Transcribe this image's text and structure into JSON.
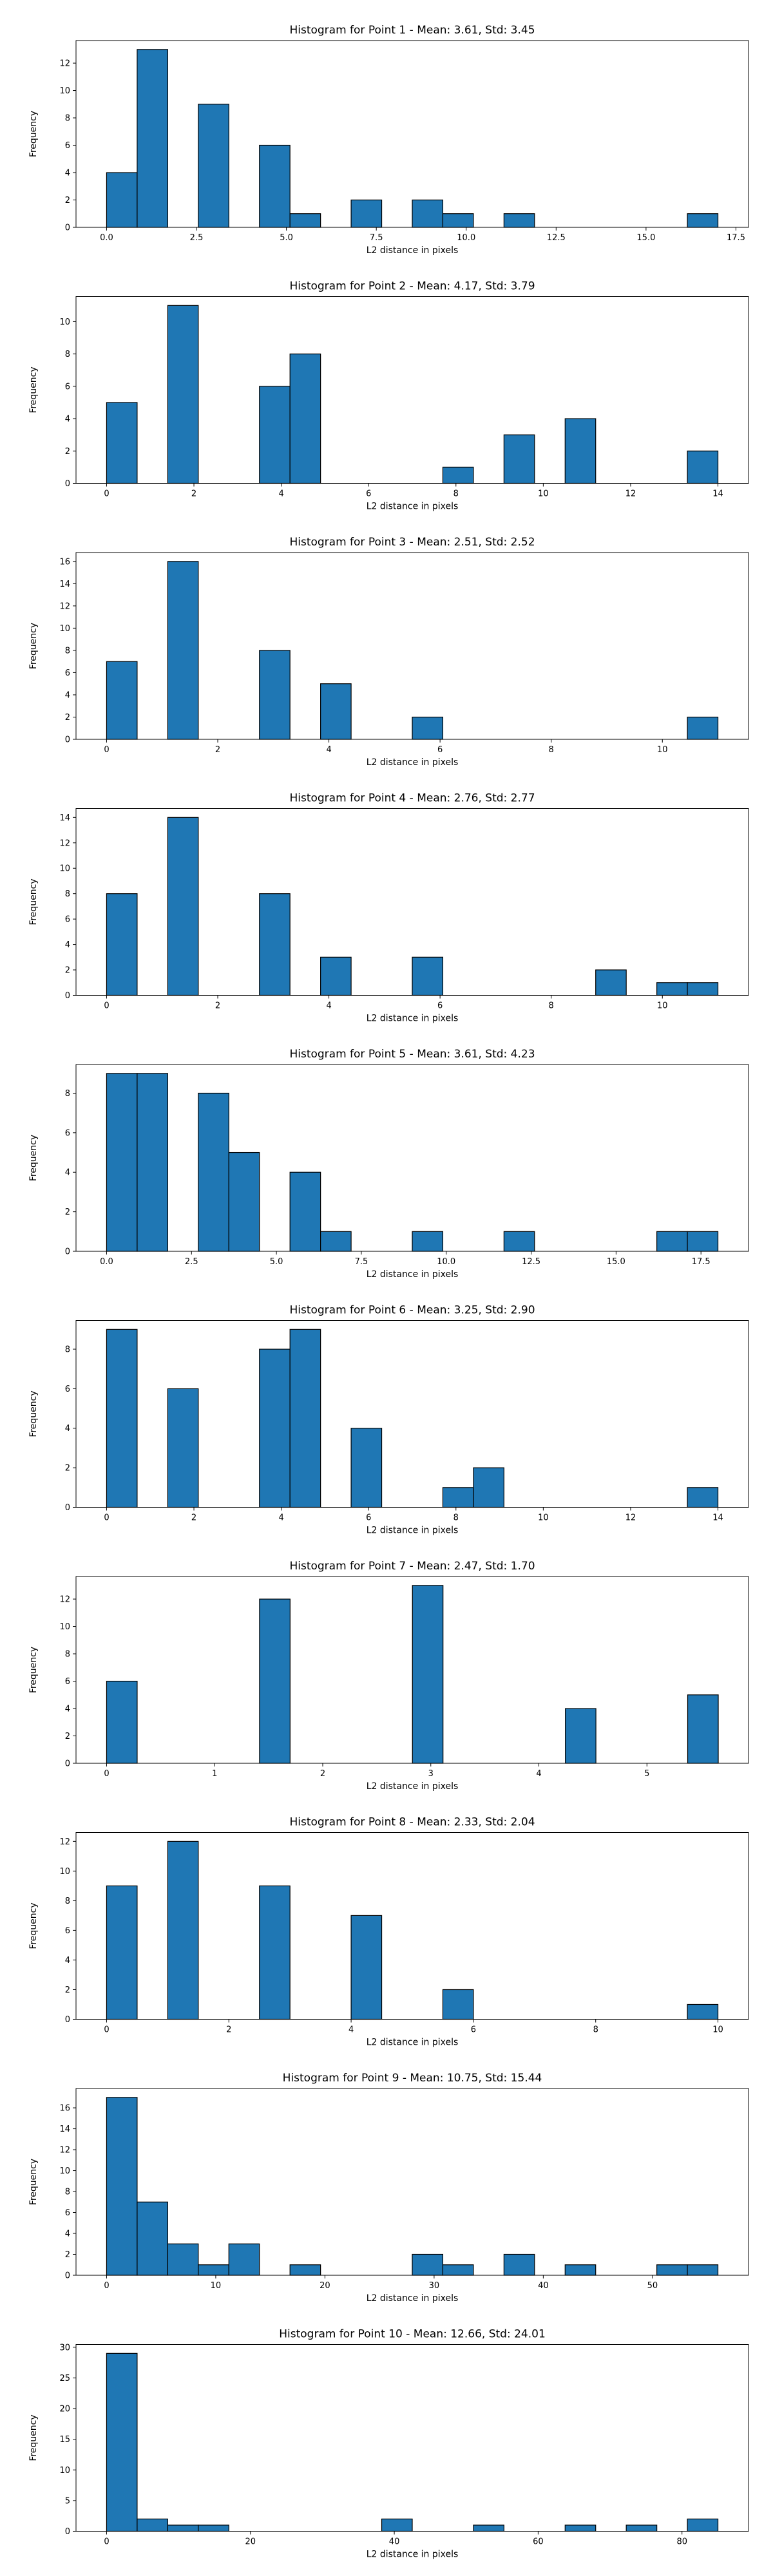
{
  "chart_data": [
    {
      "type": "bar",
      "title": "Histogram for Point 1 - Mean: 3.61, Std: 3.45",
      "xlabel": "L2 distance in pixels",
      "ylabel": "Frequency",
      "xlim": [
        -0.85,
        17.85
      ],
      "ylim": [
        0,
        13.65
      ],
      "xticks": [
        0.0,
        2.5,
        5.0,
        7.5,
        10.0,
        12.5,
        15.0,
        17.5
      ],
      "xtick_labels": [
        "0.0",
        "2.5",
        "5.0",
        "7.5",
        "10.0",
        "12.5",
        "15.0",
        "17.5"
      ],
      "yticks": [
        0,
        2,
        4,
        6,
        8,
        10,
        12
      ],
      "bin_edges": [
        0.0,
        0.85,
        1.7,
        2.55,
        3.4,
        4.25,
        5.1,
        5.95,
        6.8,
        7.65,
        8.5,
        9.35,
        10.2,
        11.05,
        11.9,
        12.75,
        13.6,
        14.45,
        15.3,
        16.15,
        17.0
      ],
      "counts": [
        4,
        13,
        0,
        9,
        0,
        6,
        1,
        0,
        2,
        0,
        2,
        1,
        0,
        1,
        0,
        0,
        0,
        0,
        0,
        1
      ],
      "grid": false,
      "legend": "none"
    },
    {
      "type": "bar",
      "title": "Histogram for Point 2 - Mean: 4.17, Std: 3.79",
      "xlabel": "L2 distance in pixels",
      "ylabel": "Frequency",
      "xlim": [
        -0.7,
        14.7
      ],
      "ylim": [
        0,
        11.55
      ],
      "xticks": [
        0,
        2,
        4,
        6,
        8,
        10,
        12,
        14
      ],
      "xtick_labels": [
        "0",
        "2",
        "4",
        "6",
        "8",
        "10",
        "12",
        "14"
      ],
      "yticks": [
        0,
        2,
        4,
        6,
        8,
        10
      ],
      "bin_edges": [
        0.0,
        0.7,
        1.4,
        2.1,
        2.8,
        3.5,
        4.2,
        4.9,
        5.6,
        6.3,
        7.0,
        7.7,
        8.4,
        9.1,
        9.8,
        10.5,
        11.2,
        11.9,
        12.6,
        13.3,
        14.0
      ],
      "counts": [
        5,
        0,
        11,
        0,
        0,
        6,
        8,
        0,
        0,
        0,
        0,
        1,
        0,
        3,
        0,
        4,
        0,
        0,
        0,
        2
      ],
      "grid": false,
      "legend": "none"
    },
    {
      "type": "bar",
      "title": "Histogram for Point 3 - Mean: 2.51, Std: 2.52",
      "xlabel": "L2 distance in pixels",
      "ylabel": "Frequency",
      "xlim": [
        -0.55,
        11.55
      ],
      "ylim": [
        0,
        16.8
      ],
      "xticks": [
        0,
        2,
        4,
        6,
        8,
        10
      ],
      "xtick_labels": [
        "0",
        "2",
        "4",
        "6",
        "8",
        "10"
      ],
      "yticks": [
        0,
        2,
        4,
        6,
        8,
        10,
        12,
        14,
        16
      ],
      "bin_edges": [
        0.0,
        0.55,
        1.1,
        1.65,
        2.2,
        2.75,
        3.3,
        3.85,
        4.4,
        4.95,
        5.5,
        6.05,
        6.6,
        7.15,
        7.7,
        8.25,
        8.8,
        9.35,
        9.9,
        10.45,
        11.0
      ],
      "counts": [
        7,
        0,
        16,
        0,
        0,
        8,
        0,
        5,
        0,
        0,
        2,
        0,
        0,
        0,
        0,
        0,
        0,
        0,
        0,
        2
      ],
      "grid": false,
      "legend": "none"
    },
    {
      "type": "bar",
      "title": "Histogram for Point 4 - Mean: 2.76, Std: 2.77",
      "xlabel": "L2 distance in pixels",
      "ylabel": "Frequency",
      "xlim": [
        -0.55,
        11.55
      ],
      "ylim": [
        0,
        14.7
      ],
      "xticks": [
        0,
        2,
        4,
        6,
        8,
        10
      ],
      "xtick_labels": [
        "0",
        "2",
        "4",
        "6",
        "8",
        "10"
      ],
      "yticks": [
        0,
        2,
        4,
        6,
        8,
        10,
        12,
        14
      ],
      "bin_edges": [
        0.0,
        0.55,
        1.1,
        1.65,
        2.2,
        2.75,
        3.3,
        3.85,
        4.4,
        4.95,
        5.5,
        6.05,
        6.6,
        7.15,
        7.7,
        8.25,
        8.8,
        9.35,
        9.9,
        10.45,
        11.0
      ],
      "counts": [
        8,
        0,
        14,
        0,
        0,
        8,
        0,
        3,
        0,
        0,
        3,
        0,
        0,
        0,
        0,
        0,
        2,
        0,
        1,
        1
      ],
      "grid": false,
      "legend": "none"
    },
    {
      "type": "bar",
      "title": "Histogram for Point 5 - Mean: 3.61, Std: 4.23",
      "xlabel": "L2 distance in pixels",
      "ylabel": "Frequency",
      "xlim": [
        -0.9,
        18.9
      ],
      "ylim": [
        0,
        9.45
      ],
      "xticks": [
        0.0,
        2.5,
        5.0,
        7.5,
        10.0,
        12.5,
        15.0,
        17.5
      ],
      "xtick_labels": [
        "0.0",
        "2.5",
        "5.0",
        "7.5",
        "10.0",
        "12.5",
        "15.0",
        "17.5"
      ],
      "yticks": [
        0,
        2,
        4,
        6,
        8
      ],
      "bin_edges": [
        0.0,
        0.9,
        1.8,
        2.7,
        3.6,
        4.5,
        5.4,
        6.3,
        7.2,
        8.1,
        9.0,
        9.9,
        10.8,
        11.7,
        12.6,
        13.5,
        14.4,
        15.3,
        16.2,
        17.1,
        18.0
      ],
      "counts": [
        9,
        9,
        0,
        8,
        5,
        0,
        4,
        1,
        0,
        0,
        1,
        0,
        0,
        1,
        0,
        0,
        0,
        0,
        1,
        1
      ],
      "grid": false,
      "legend": "none"
    },
    {
      "type": "bar",
      "title": "Histogram for Point 6 - Mean: 3.25, Std: 2.90",
      "xlabel": "L2 distance in pixels",
      "ylabel": "Frequency",
      "xlim": [
        -0.7,
        14.7
      ],
      "ylim": [
        0,
        9.45
      ],
      "xticks": [
        0,
        2,
        4,
        6,
        8,
        10,
        12,
        14
      ],
      "xtick_labels": [
        "0",
        "2",
        "4",
        "6",
        "8",
        "10",
        "12",
        "14"
      ],
      "yticks": [
        0,
        2,
        4,
        6,
        8
      ],
      "bin_edges": [
        0.0,
        0.7,
        1.4,
        2.1,
        2.8,
        3.5,
        4.2,
        4.9,
        5.6,
        6.3,
        7.0,
        7.7,
        8.4,
        9.1,
        9.8,
        10.5,
        11.2,
        11.9,
        12.6,
        13.3,
        14.0
      ],
      "counts": [
        9,
        0,
        6,
        0,
        0,
        8,
        9,
        0,
        4,
        0,
        0,
        1,
        2,
        0,
        0,
        0,
        0,
        0,
        0,
        1
      ],
      "grid": false,
      "legend": "none"
    },
    {
      "type": "bar",
      "title": "Histogram for Point 7 - Mean: 2.47, Std: 1.70",
      "xlabel": "L2 distance in pixels",
      "ylabel": "Frequency",
      "xlim": [
        -0.283,
        5.94
      ],
      "ylim": [
        0,
        13.65
      ],
      "xticks": [
        0,
        1,
        2,
        3,
        4,
        5
      ],
      "xtick_labels": [
        "0",
        "1",
        "2",
        "3",
        "4",
        "5"
      ],
      "yticks": [
        0,
        2,
        4,
        6,
        8,
        10,
        12
      ],
      "bin_edges": [
        0.0,
        0.283,
        0.566,
        0.849,
        1.132,
        1.415,
        1.698,
        1.981,
        2.264,
        2.547,
        2.83,
        3.113,
        3.396,
        3.679,
        3.962,
        4.245,
        4.528,
        4.811,
        5.094,
        5.377,
        5.66
      ],
      "counts": [
        6,
        0,
        0,
        0,
        0,
        12,
        0,
        0,
        0,
        0,
        13,
        0,
        0,
        0,
        0,
        4,
        0,
        0,
        0,
        5
      ],
      "grid": false,
      "legend": "none"
    },
    {
      "type": "bar",
      "title": "Histogram for Point 8 - Mean: 2.33, Std: 2.04",
      "xlabel": "L2 distance in pixels",
      "ylabel": "Frequency",
      "xlim": [
        -0.5,
        10.5
      ],
      "ylim": [
        0,
        12.6
      ],
      "xticks": [
        0,
        2,
        4,
        6,
        8,
        10
      ],
      "xtick_labels": [
        "0",
        "2",
        "4",
        "6",
        "8",
        "10"
      ],
      "yticks": [
        0,
        2,
        4,
        6,
        8,
        10,
        12
      ],
      "bin_edges": [
        0.0,
        0.5,
        1.0,
        1.5,
        2.0,
        2.5,
        3.0,
        3.5,
        4.0,
        4.5,
        5.0,
        5.5,
        6.0,
        6.5,
        7.0,
        7.5,
        8.0,
        8.5,
        9.0,
        9.5,
        10.0
      ],
      "counts": [
        9,
        0,
        12,
        0,
        0,
        9,
        0,
        0,
        7,
        0,
        0,
        2,
        0,
        0,
        0,
        0,
        0,
        0,
        0,
        1
      ],
      "grid": false,
      "legend": "none"
    },
    {
      "type": "bar",
      "title": "Histogram for Point 9 - Mean: 10.75, Std: 15.44",
      "xlabel": "L2 distance in pixels",
      "ylabel": "Frequency",
      "xlim": [
        -2.8,
        58.8
      ],
      "ylim": [
        0,
        17.85
      ],
      "xticks": [
        0,
        10,
        20,
        30,
        40,
        50
      ],
      "xtick_labels": [
        "0",
        "10",
        "20",
        "30",
        "40",
        "50"
      ],
      "yticks": [
        0,
        2,
        4,
        6,
        8,
        10,
        12,
        14,
        16
      ],
      "bin_edges": [
        0.0,
        2.8,
        5.6,
        8.4,
        11.2,
        14.0,
        16.8,
        19.6,
        22.4,
        25.2,
        28.0,
        30.8,
        33.6,
        36.4,
        39.2,
        42.0,
        44.8,
        47.6,
        50.4,
        53.2,
        56.0
      ],
      "counts": [
        17,
        7,
        3,
        1,
        3,
        0,
        1,
        0,
        0,
        0,
        2,
        1,
        0,
        2,
        0,
        1,
        0,
        0,
        1,
        1
      ],
      "grid": false,
      "legend": "none"
    },
    {
      "type": "bar",
      "title": "Histogram for Point 10 - Mean: 12.66, Std: 24.01",
      "xlabel": "L2 distance in pixels",
      "ylabel": "Frequency",
      "xlim": [
        -4.25,
        89.25
      ],
      "ylim": [
        0,
        30.45
      ],
      "xticks": [
        0,
        20,
        40,
        60,
        80
      ],
      "xtick_labels": [
        "0",
        "20",
        "40",
        "60",
        "80"
      ],
      "yticks": [
        0,
        5,
        10,
        15,
        20,
        25,
        30
      ],
      "bin_edges": [
        0.0,
        4.25,
        8.5,
        12.75,
        17.0,
        21.25,
        25.5,
        29.75,
        34.0,
        38.25,
        42.5,
        46.75,
        51.0,
        55.25,
        59.5,
        63.75,
        68.0,
        72.25,
        76.5,
        80.75,
        85.0
      ],
      "counts": [
        29,
        2,
        1,
        1,
        0,
        0,
        0,
        0,
        0,
        2,
        0,
        0,
        1,
        0,
        0,
        1,
        0,
        1,
        0,
        2
      ],
      "grid": false,
      "legend": "none"
    }
  ],
  "style": {
    "bar_color": "#1f77b4",
    "edge_color": "#000000",
    "axes_color": "#000000",
    "background": "#ffffff"
  }
}
